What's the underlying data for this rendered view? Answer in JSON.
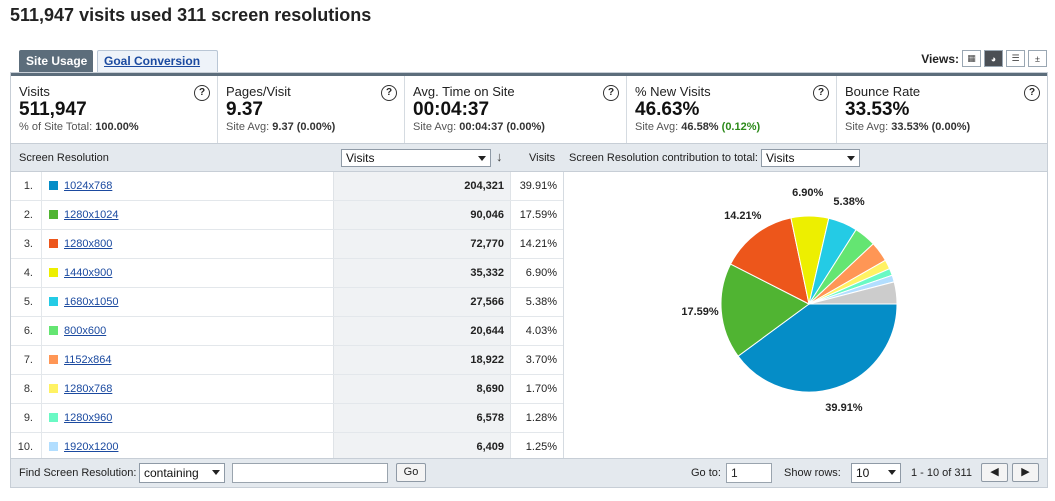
{
  "page_title": "511,947 visits used 311 screen resolutions",
  "tabs": [
    {
      "label": "Site Usage",
      "active": true
    },
    {
      "label": "Goal Conversion",
      "active": false
    }
  ],
  "views": {
    "label": "Views:",
    "icons": [
      "table-view-icon",
      "pie-view-icon",
      "performance-view-icon",
      "comparison-view-icon"
    ],
    "selected": 1
  },
  "metrics": [
    {
      "label": "Visits",
      "value": "511,947",
      "sub_prefix": "% of Site Total:",
      "sub_value": "100.00%",
      "sub_delta": ""
    },
    {
      "label": "Pages/Visit",
      "value": "9.37",
      "sub_prefix": "Site Avg:",
      "sub_value": "9.37 (0.00%)",
      "sub_delta": ""
    },
    {
      "label": "Avg. Time on Site",
      "value": "00:04:37",
      "sub_prefix": "Site Avg:",
      "sub_value": "00:04:37 (0.00%)",
      "sub_delta": ""
    },
    {
      "label": "% New Visits",
      "value": "46.63%",
      "sub_prefix": "Site Avg:",
      "sub_value": "46.58%",
      "sub_delta": "(0.12%)"
    },
    {
      "label": "Bounce Rate",
      "value": "33.53%",
      "sub_prefix": "Site Avg:",
      "sub_value": "33.53% (0.00%)",
      "sub_delta": ""
    }
  ],
  "table": {
    "col_dimension": "Screen Resolution",
    "metric_select": "Visits",
    "col_pct": "Visits",
    "contribution_label": "Screen Resolution contribution to total:",
    "contribution_select": "Visits",
    "rows": [
      {
        "num": "1.",
        "name": "1024x768",
        "value": "204,321",
        "pct": "39.91%",
        "color": "#058dc7"
      },
      {
        "num": "2.",
        "name": "1280x1024",
        "value": "90,046",
        "pct": "17.59%",
        "color": "#50b432"
      },
      {
        "num": "3.",
        "name": "1280x800",
        "value": "72,770",
        "pct": "14.21%",
        "color": "#ed561b"
      },
      {
        "num": "4.",
        "name": "1440x900",
        "value": "35,332",
        "pct": "6.90%",
        "color": "#edef00"
      },
      {
        "num": "5.",
        "name": "1680x1050",
        "value": "27,566",
        "pct": "5.38%",
        "color": "#24cbe5"
      },
      {
        "num": "6.",
        "name": "800x600",
        "value": "20,644",
        "pct": "4.03%",
        "color": "#64e572"
      },
      {
        "num": "7.",
        "name": "1152x864",
        "value": "18,922",
        "pct": "3.70%",
        "color": "#ff9655"
      },
      {
        "num": "8.",
        "name": "1280x768",
        "value": "8,690",
        "pct": "1.70%",
        "color": "#fff263"
      },
      {
        "num": "9.",
        "name": "1280x960",
        "value": "6,578",
        "pct": "1.28%",
        "color": "#6af9c4"
      },
      {
        "num": "10.",
        "name": "1920x1200",
        "value": "6,409",
        "pct": "1.25%",
        "color": "#b2deff"
      }
    ]
  },
  "chart_data": {
    "type": "pie",
    "slices": [
      {
        "label": "1024x768",
        "value": 39.91,
        "display": "39.91%",
        "color": "#058dc7"
      },
      {
        "label": "1280x1024",
        "value": 17.59,
        "display": "17.59%",
        "color": "#50b432"
      },
      {
        "label": "1280x800",
        "value": 14.21,
        "display": "14.21%",
        "color": "#ed561b"
      },
      {
        "label": "1440x900",
        "value": 6.9,
        "display": "6.90%",
        "color": "#edef00"
      },
      {
        "label": "1680x1050",
        "value": 5.38,
        "display": "5.38%",
        "color": "#24cbe5"
      },
      {
        "label": "800x600",
        "value": 4.03,
        "display": "",
        "color": "#64e572"
      },
      {
        "label": "1152x864",
        "value": 3.7,
        "display": "",
        "color": "#ff9655"
      },
      {
        "label": "1280x768",
        "value": 1.7,
        "display": "",
        "color": "#fff263"
      },
      {
        "label": "1280x960",
        "value": 1.28,
        "display": "",
        "color": "#6af9c4"
      },
      {
        "label": "1920x1200",
        "value": 1.25,
        "display": "",
        "color": "#b2deff"
      },
      {
        "label": "",
        "value": 4.05,
        "display": "",
        "color": "#cccccc"
      }
    ]
  },
  "footer": {
    "find_label": "Find Screen Resolution:",
    "match_select": "containing",
    "search_value": "",
    "go_label": "Go",
    "goto_label": "Go to:",
    "goto_value": "1",
    "show_rows_label": "Show rows:",
    "show_rows_value": "10",
    "range_text": "1 - 10 of 311"
  }
}
